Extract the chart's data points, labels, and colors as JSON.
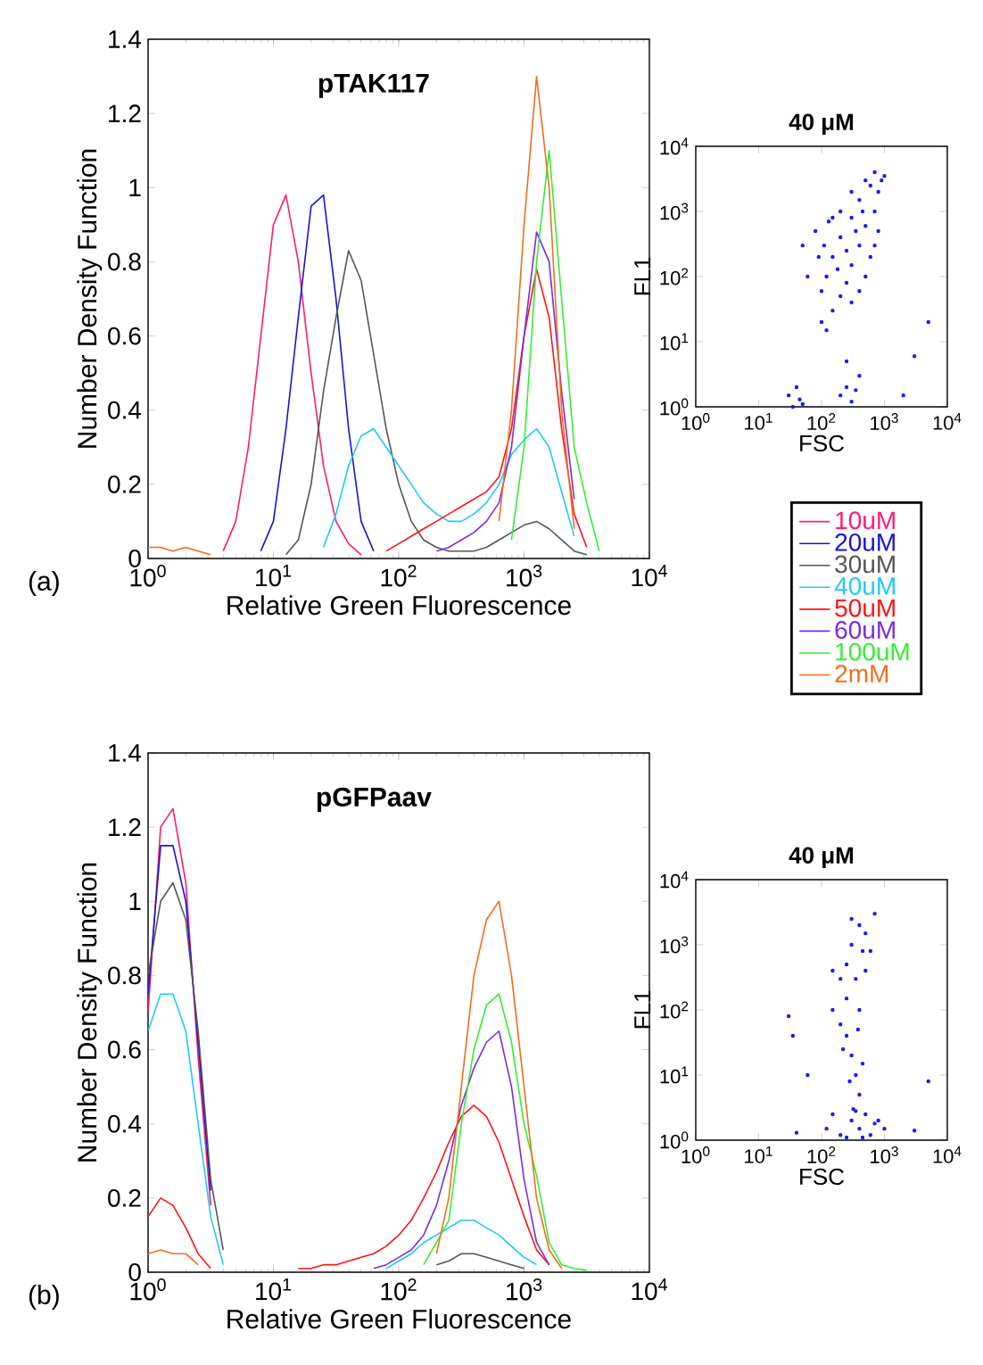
{
  "chart_data": [
    {
      "type": "line",
      "title": "pTAK117",
      "xlabel": "Relative Green Fluorescence",
      "ylabel": "Number Density Function",
      "annotations": [
        "(a)"
      ],
      "log": "x",
      "marker": "none",
      "legend": "right",
      "xlim": [
        1,
        10000
      ],
      "ylim": [
        0,
        1.4
      ],
      "xticks": [
        {
          "value": 1,
          "label": "10$^{0}$"
        },
        {
          "value": 10,
          "label": "10$^{1}$"
        },
        {
          "value": 100,
          "label": "10$^{2}$"
        },
        {
          "value": 1000,
          "label": "10$^{3}$"
        },
        {
          "value": 10000,
          "label": "10$^{4}$"
        }
      ],
      "yticks": [
        0,
        0.2,
        0.4,
        0.6,
        0.8,
        1,
        1.2,
        1.4
      ],
      "x": [
        1,
        1.26,
        1.58,
        2,
        2.51,
        3.16,
        3.98,
        5.01,
        6.31,
        7.94,
        10,
        12.6,
        15.8,
        20,
        25.1,
        31.6,
        39.8,
        50.1,
        63.1,
        79.4,
        100,
        126,
        158,
        200,
        251,
        316,
        398,
        501,
        631,
        794,
        1000,
        1259,
        1585,
        1995,
        2512,
        3162,
        3981
      ],
      "series": [
        {
          "name": "10uM",
          "color": "#ff1a75",
          "values": [
            null,
            null,
            null,
            null,
            null,
            null,
            0.02,
            0.1,
            0.3,
            0.6,
            0.9,
            0.98,
            0.8,
            0.5,
            0.25,
            0.1,
            0.04,
            0.01,
            null,
            null,
            null,
            null,
            null,
            null,
            null,
            null,
            null,
            null,
            null,
            null,
            null,
            null,
            null,
            null,
            null,
            null,
            null
          ]
        },
        {
          "name": "20uM",
          "color": "#1414d9",
          "values": [
            null,
            null,
            null,
            null,
            null,
            null,
            null,
            null,
            null,
            0.02,
            0.1,
            0.35,
            0.65,
            0.95,
            0.98,
            0.7,
            0.35,
            0.1,
            0.02,
            null,
            null,
            null,
            null,
            null,
            null,
            null,
            null,
            null,
            null,
            null,
            null,
            null,
            null,
            null,
            null,
            null,
            null
          ]
        },
        {
          "name": "30uM",
          "color": "#555555",
          "values": [
            null,
            null,
            null,
            null,
            null,
            null,
            null,
            null,
            null,
            null,
            null,
            0.01,
            0.05,
            0.2,
            0.45,
            0.65,
            0.83,
            0.75,
            0.55,
            0.35,
            0.2,
            0.1,
            0.05,
            0.03,
            0.02,
            0.02,
            0.02,
            0.03,
            0.05,
            0.07,
            0.09,
            0.1,
            0.08,
            0.05,
            0.02,
            0.01,
            null
          ]
        },
        {
          "name": "40uM",
          "color": "#1ec8ff",
          "values": [
            null,
            null,
            null,
            null,
            null,
            null,
            null,
            null,
            null,
            null,
            null,
            null,
            null,
            null,
            0.03,
            0.12,
            0.25,
            0.33,
            0.35,
            0.3,
            0.25,
            0.2,
            0.15,
            0.12,
            0.1,
            0.1,
            0.12,
            0.15,
            0.2,
            0.28,
            0.32,
            0.35,
            0.3,
            0.18,
            0.06,
            null,
            null
          ]
        },
        {
          "name": "50uM",
          "color": "#ff1414",
          "values": [
            null,
            null,
            null,
            null,
            null,
            null,
            null,
            null,
            null,
            null,
            null,
            null,
            null,
            null,
            null,
            null,
            null,
            null,
            null,
            0.02,
            0.04,
            0.06,
            0.08,
            0.1,
            0.12,
            0.14,
            0.16,
            0.18,
            0.22,
            0.35,
            0.6,
            0.78,
            0.65,
            0.35,
            0.12,
            0.03,
            null
          ]
        },
        {
          "name": "60uM",
          "color": "#7a2be2",
          "values": [
            null,
            null,
            null,
            null,
            null,
            null,
            null,
            null,
            null,
            null,
            null,
            null,
            null,
            null,
            null,
            null,
            null,
            null,
            null,
            null,
            null,
            null,
            null,
            0.02,
            0.03,
            0.05,
            0.07,
            0.1,
            0.15,
            0.3,
            0.6,
            0.88,
            0.8,
            0.45,
            0.16,
            null,
            null
          ]
        },
        {
          "name": "100uM",
          "color": "#33ee33",
          "values": [
            null,
            null,
            null,
            null,
            null,
            null,
            null,
            null,
            null,
            null,
            null,
            null,
            null,
            null,
            null,
            null,
            null,
            null,
            null,
            null,
            null,
            null,
            null,
            null,
            null,
            null,
            null,
            null,
            null,
            0.05,
            0.3,
            0.8,
            1.1,
            0.7,
            0.3,
            0.15,
            0.02
          ]
        },
        {
          "name": "2mM",
          "color": "#f26d1a",
          "values": [
            0.03,
            0.03,
            0.02,
            0.03,
            0.02,
            0.01,
            null,
            null,
            null,
            null,
            null,
            null,
            null,
            null,
            null,
            null,
            null,
            null,
            null,
            null,
            null,
            null,
            null,
            null,
            null,
            null,
            null,
            null,
            0.1,
            0.4,
            0.9,
            1.3,
            1.0,
            0.4,
            0.08,
            null,
            null
          ]
        }
      ]
    },
    {
      "type": "scatter",
      "title": "40 μM",
      "xlabel": "FSC",
      "ylabel": "FL1",
      "log": "xy",
      "marker": "circle",
      "color": "#1a1aff",
      "xlim": [
        1,
        10000
      ],
      "ylim": [
        1,
        10000
      ],
      "xticks": [
        {
          "value": 1,
          "label": "10$^{0}$"
        },
        {
          "value": 10,
          "label": "10$^{1}$"
        },
        {
          "value": 100,
          "label": "10$^{2}$"
        },
        {
          "value": 1000,
          "label": "10$^{3}$"
        },
        {
          "value": 10000,
          "label": "10$^{4}$"
        }
      ],
      "yticks": [
        {
          "value": 1,
          "label": "10$^{0}$"
        },
        {
          "value": 10,
          "label": "10$^{1}$"
        },
        {
          "value": 100,
          "label": "10$^{2}$"
        },
        {
          "value": 1000,
          "label": "10$^{3}$"
        },
        {
          "value": 10000,
          "label": "10$^{4}$"
        }
      ],
      "x": [
        100,
        120,
        150,
        200,
        250,
        300,
        400,
        500,
        700,
        800,
        900,
        1000,
        600,
        400,
        300,
        200,
        150,
        120,
        100,
        110,
        130,
        200,
        300,
        500,
        700,
        800,
        600,
        500,
        400,
        300,
        700,
        250,
        180,
        350,
        450,
        150,
        90,
        60,
        50,
        80,
        30,
        35,
        40,
        45,
        50,
        200,
        250,
        300,
        350,
        400,
        250,
        3000,
        5000,
        2000
      ],
      "values": [
        20,
        15,
        30,
        50,
        80,
        150,
        300,
        600,
        1000,
        2000,
        3000,
        3500,
        2500,
        1500,
        800,
        400,
        200,
        100,
        60,
        300,
        700,
        1000,
        2000,
        3000,
        4000,
        500,
        200,
        100,
        60,
        40,
        300,
        250,
        130,
        500,
        1000,
        800,
        200,
        100,
        300,
        500,
        1.5,
        1,
        2,
        1.3,
        1.1,
        1.5,
        2,
        1.2,
        1.8,
        3,
        5,
        6,
        20,
        1.5
      ]
    },
    {
      "type": "line",
      "title": "pGFPaav",
      "xlabel": "Relative Green Fluorescence",
      "ylabel": "Number Density Function",
      "annotations": [
        "(b)"
      ],
      "log": "x",
      "marker": "none",
      "xlim": [
        1,
        10000
      ],
      "ylim": [
        0,
        1.4
      ],
      "xticks": [
        {
          "value": 1,
          "label": "10$^{0}$"
        },
        {
          "value": 10,
          "label": "10$^{1}$"
        },
        {
          "value": 100,
          "label": "10$^{2}$"
        },
        {
          "value": 1000,
          "label": "10$^{3}$"
        },
        {
          "value": 10000,
          "label": "10$^{4}$"
        }
      ],
      "yticks": [
        0,
        0.2,
        0.4,
        0.6,
        0.8,
        1,
        1.2,
        1.4
      ],
      "x": [
        1,
        1.26,
        1.58,
        2,
        2.51,
        3.16,
        3.98,
        5.01,
        6.31,
        7.94,
        10,
        12.6,
        15.8,
        20,
        25.1,
        31.6,
        39.8,
        50.1,
        63.1,
        79.4,
        100,
        126,
        158,
        200,
        251,
        316,
        398,
        501,
        631,
        794,
        1000,
        1259,
        1585,
        1995,
        2512,
        3162
      ],
      "series": [
        {
          "color": "#ff1a75",
          "values": [
            0.7,
            1.2,
            1.25,
            1.05,
            0.58,
            0.18,
            null,
            null,
            null,
            null,
            null,
            null,
            null,
            null,
            null,
            null,
            null,
            null,
            null,
            null,
            null,
            null,
            null,
            null,
            null,
            null,
            null,
            null,
            null,
            null,
            null,
            null,
            null,
            null,
            null,
            null
          ]
        },
        {
          "color": "#1414d9",
          "values": [
            0.75,
            1.15,
            1.15,
            1.0,
            0.62,
            0.22,
            null,
            null,
            null,
            null,
            null,
            null,
            null,
            null,
            null,
            null,
            null,
            null,
            null,
            null,
            null,
            null,
            null,
            null,
            null,
            null,
            null,
            null,
            null,
            null,
            null,
            null,
            null,
            null,
            null,
            null
          ]
        },
        {
          "color": "#555555",
          "values": [
            0.8,
            1.0,
            1.05,
            0.95,
            0.65,
            0.25,
            0.06,
            null,
            null,
            null,
            null,
            null,
            null,
            null,
            null,
            null,
            null,
            null,
            null,
            null,
            null,
            null,
            null,
            0.02,
            0.03,
            0.05,
            0.05,
            0.04,
            0.03,
            0.02,
            0.01,
            null,
            null,
            null,
            null,
            null
          ]
        },
        {
          "color": "#1ec8ff",
          "values": [
            0.65,
            0.75,
            0.75,
            0.65,
            0.4,
            0.15,
            0.02,
            null,
            null,
            null,
            null,
            null,
            null,
            null,
            null,
            null,
            null,
            null,
            null,
            0.01,
            0.03,
            0.05,
            0.08,
            0.1,
            0.12,
            0.14,
            0.14,
            0.12,
            0.1,
            0.07,
            0.04,
            0.02,
            null,
            null,
            null,
            null
          ]
        },
        {
          "color": "#ff1414",
          "values": [
            0.15,
            0.2,
            0.18,
            0.12,
            0.05,
            0.01,
            null,
            null,
            null,
            null,
            null,
            null,
            0.01,
            0.01,
            0.02,
            0.02,
            0.03,
            0.04,
            0.05,
            0.07,
            0.1,
            0.14,
            0.2,
            0.27,
            0.35,
            0.42,
            0.45,
            0.42,
            0.35,
            0.25,
            0.15,
            0.06,
            0.02,
            null,
            null,
            null
          ]
        },
        {
          "color": "#7a2be2",
          "values": [
            null,
            null,
            null,
            null,
            null,
            null,
            null,
            null,
            null,
            null,
            null,
            null,
            null,
            null,
            null,
            null,
            null,
            null,
            0.01,
            0.02,
            0.04,
            0.06,
            0.1,
            0.18,
            0.3,
            0.45,
            0.55,
            0.62,
            0.65,
            0.5,
            0.25,
            0.08,
            0.02,
            null,
            null,
            null
          ]
        },
        {
          "color": "#33ee33",
          "values": [
            null,
            null,
            null,
            null,
            null,
            null,
            null,
            null,
            null,
            null,
            null,
            null,
            null,
            null,
            null,
            null,
            null,
            null,
            null,
            null,
            null,
            null,
            0.02,
            0.08,
            0.14,
            0.4,
            0.6,
            0.72,
            0.75,
            0.62,
            0.4,
            0.26,
            0.08,
            0.02,
            0.01,
            0.005
          ]
        },
        {
          "color": "#f26d1a",
          "values": [
            0.05,
            0.06,
            0.05,
            0.05,
            0.02,
            null,
            null,
            null,
            null,
            null,
            null,
            null,
            null,
            null,
            null,
            null,
            null,
            null,
            null,
            null,
            null,
            null,
            null,
            0.05,
            0.2,
            0.5,
            0.8,
            0.95,
            1.0,
            0.8,
            0.5,
            0.2,
            0.06,
            0.01,
            null,
            null
          ]
        }
      ]
    },
    {
      "type": "scatter",
      "title": "40 μM",
      "xlabel": "FSC",
      "ylabel": "FL1",
      "log": "xy",
      "marker": "circle",
      "color": "#1a1aff",
      "xlim": [
        1,
        10000
      ],
      "ylim": [
        1,
        10000
      ],
      "xticks": [
        {
          "value": 1,
          "label": "10$^{0}$"
        },
        {
          "value": 10,
          "label": "10$^{1}$"
        },
        {
          "value": 100,
          "label": "10$^{2}$"
        },
        {
          "value": 1000,
          "label": "10$^{3}$"
        },
        {
          "value": 10000,
          "label": "10$^{4}$"
        }
      ],
      "yticks": [
        {
          "value": 1,
          "label": "10$^{0}$"
        },
        {
          "value": 10,
          "label": "10$^{1}$"
        },
        {
          "value": 100,
          "label": "10$^{2}$"
        },
        {
          "value": 1000,
          "label": "10$^{3}$"
        },
        {
          "value": 10000,
          "label": "10$^{4}$"
        }
      ],
      "x": [
        150,
        200,
        250,
        300,
        400,
        500,
        600,
        350,
        250,
        200,
        400,
        500,
        300,
        700,
        450,
        150,
        250,
        300,
        350,
        400,
        280,
        320,
        450,
        220,
        380,
        120,
        200,
        300,
        400,
        500,
        600,
        800,
        1000,
        150,
        250,
        350,
        700,
        450,
        40,
        3000,
        5000,
        30,
        35,
        60
      ],
      "values": [
        100,
        300,
        500,
        1000,
        2000,
        1500,
        800,
        300,
        150,
        60,
        100,
        400,
        2500,
        3000,
        800,
        400,
        40,
        20,
        10,
        5,
        8,
        3,
        15,
        25,
        50,
        1.5,
        1.2,
        2,
        1.5,
        2.5,
        1.2,
        2,
        1.5,
        2.5,
        1.1,
        2.8,
        1.8,
        1.1,
        1.3,
        1.4,
        8,
        80,
        40,
        10
      ]
    }
  ]
}
